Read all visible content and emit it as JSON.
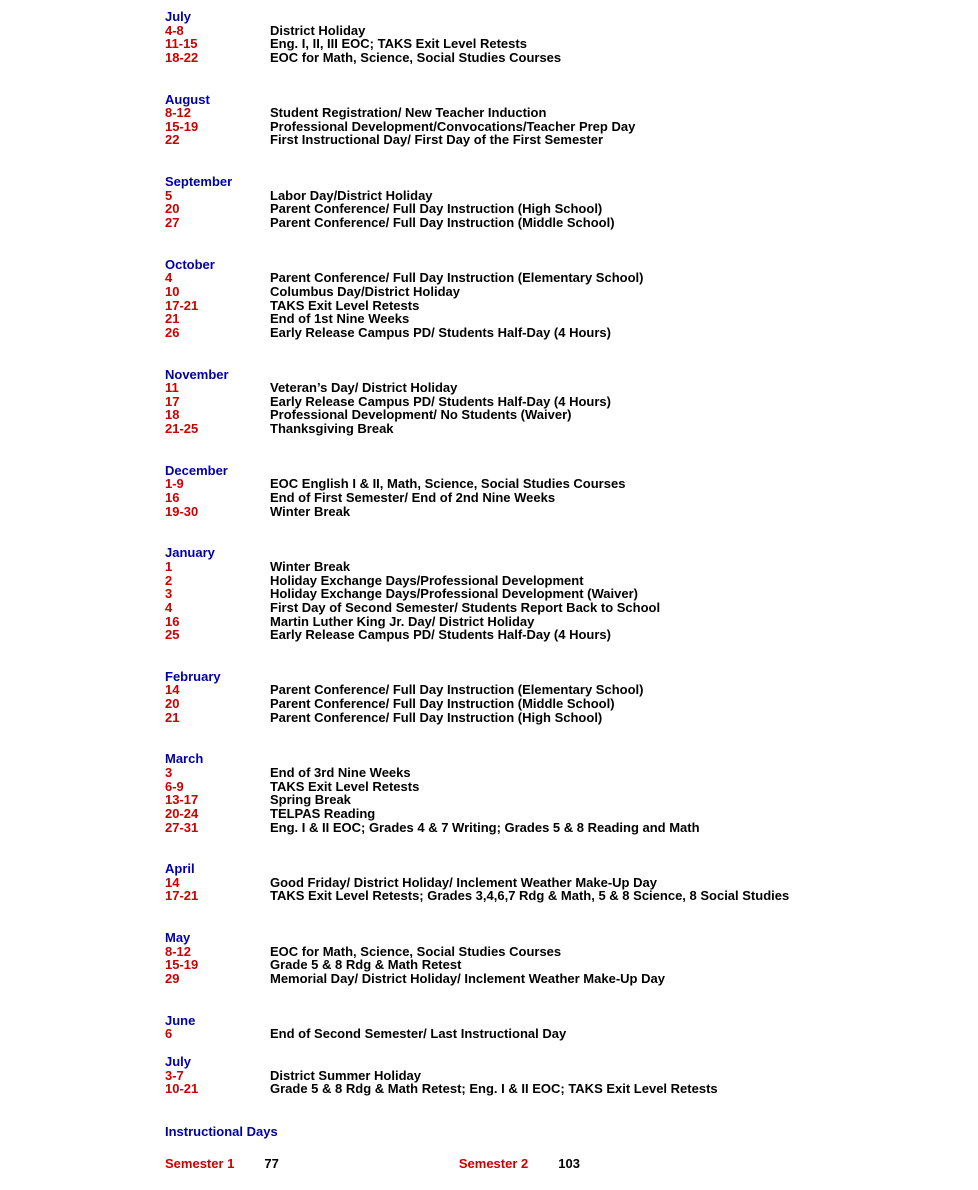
{
  "colors": {
    "month": "#0000aa",
    "date": "#cc0000",
    "desc": "#000000",
    "background": "#ffffff"
  },
  "typography": {
    "font_family": "Arial, Helvetica, sans-serif",
    "font_size_pt": 10,
    "weight": "bold"
  },
  "months": [
    {
      "name": "July",
      "entries": [
        {
          "date": "4-8",
          "desc": "District Holiday"
        },
        {
          "date": "11-15",
          "desc": "Eng. I, II, III EOC; TAKS Exit Level Retests"
        },
        {
          "date": "18-22",
          "desc": "EOC for Math, Science, Social Studies Courses"
        }
      ]
    },
    {
      "name": "August",
      "entries": [
        {
          "date": "8-12",
          "desc": "Student Registration/ New Teacher Induction"
        },
        {
          "date": "15-19",
          "desc": "Professional Development/Convocations/Teacher Prep Day"
        },
        {
          "date": "22",
          "desc": "First Instructional Day/ First Day of the First Semester"
        }
      ]
    },
    {
      "name": "September",
      "entries": [
        {
          "date": "5",
          "desc": "Labor Day/District Holiday"
        },
        {
          "date": "20",
          "desc": "Parent Conference/ Full Day Instruction (High School)"
        },
        {
          "date": "27",
          "desc": "Parent Conference/ Full Day Instruction (Middle School)"
        }
      ]
    },
    {
      "name": "October",
      "entries": [
        {
          "date": "4",
          "desc": "Parent Conference/ Full Day Instruction  (Elementary School)"
        },
        {
          "date": "10",
          "desc": "Columbus Day/District Holiday"
        },
        {
          "date": "17-21",
          "desc": "TAKS Exit Level Retests"
        },
        {
          "date": "21",
          "desc": "End of 1st Nine Weeks"
        },
        {
          "date": "26",
          "desc": "Early Release Campus PD/ Students Half-Day (4 Hours)"
        }
      ]
    },
    {
      "name": "November",
      "entries": [
        {
          "date": "11",
          "desc": "Veteran’s Day/ District Holiday"
        },
        {
          "date": "17",
          "desc": "Early Release Campus PD/ Students Half-Day (4 Hours)"
        },
        {
          "date": "18",
          "desc": "Professional Development/ No Students (Waiver)"
        },
        {
          "date": "21-25",
          "desc": "Thanksgiving Break"
        }
      ]
    },
    {
      "name": "December",
      "entries": [
        {
          "date": "1-9",
          "desc": "EOC English I & II, Math, Science, Social Studies Courses"
        },
        {
          "date": "16",
          "desc": "End of First Semester/ End of 2nd Nine Weeks"
        },
        {
          "date": "19-30",
          "desc": "Winter Break"
        }
      ]
    },
    {
      "name": "January",
      "entries": [
        {
          "date": "1",
          "desc": "Winter Break"
        },
        {
          "date": "2",
          "desc": "Holiday Exchange Days/Professional Development"
        },
        {
          "date": "3",
          "desc": "Holiday Exchange Days/Professional Development (Waiver)"
        },
        {
          "date": "4",
          "desc": "First Day of Second Semester/ Students Report Back to School"
        },
        {
          "date": "16",
          "desc": "Martin Luther King Jr. Day/ District Holiday"
        },
        {
          "date": "25",
          "desc": "Early Release Campus PD/ Students Half-Day (4 Hours)"
        }
      ]
    },
    {
      "name": "February",
      "entries": [
        {
          "date": "14",
          "desc": "Parent Conference/ Full Day Instruction (Elementary School)"
        },
        {
          "date": "20",
          "desc": "Parent Conference/ Full Day Instruction (Middle School)"
        },
        {
          "date": "21",
          "desc": "Parent Conference/ Full Day Instruction (High School)"
        }
      ]
    },
    {
      "name": "March",
      "entries": [
        {
          "date": "3",
          "desc": "End of 3rd Nine Weeks"
        },
        {
          "date": "6-9",
          "desc": "TAKS Exit Level Retests"
        },
        {
          "date": "13-17",
          "desc": "Spring Break"
        },
        {
          "date": "20-24",
          "desc": "TELPAS Reading"
        },
        {
          "date": "27-31",
          "desc": "Eng. I & II EOC; Grades 4 & 7 Writing; Grades 5 & 8 Reading and Math"
        }
      ]
    },
    {
      "name": "April",
      "entries": [
        {
          "date": "14",
          "desc": "Good Friday/ District Holiday/ Inclement Weather Make-Up Day"
        },
        {
          "date": "17-21",
          "desc": "TAKS Exit Level Retests; Grades 3,4,6,7 Rdg & Math, 5 & 8 Science, 8 Social Studies"
        }
      ]
    },
    {
      "name": "May",
      "entries": [
        {
          "date": "8-12",
          "desc": "EOC for Math, Science, Social Studies Courses"
        },
        {
          "date": "15-19",
          "desc": "Grade 5 & 8 Rdg & Math Retest"
        },
        {
          "date": "29",
          "desc": "Memorial Day/ District Holiday/ Inclement Weather Make-Up Day"
        }
      ]
    },
    {
      "name": "June",
      "entries": [
        {
          "date": "6",
          "desc": "End of Second Semester/ Last Instructional Day"
        }
      ]
    },
    {
      "name": "July",
      "entries": [
        {
          "date": "3-7",
          "desc": "District Summer Holiday"
        },
        {
          "date": "10-21",
          "desc": "Grade 5 & 8 Rdg & Math Retest; Eng. I & II EOC; TAKS Exit Level Retests"
        }
      ]
    }
  ],
  "instructional_days": {
    "title": "Instructional Days",
    "semester1_label": "Semester 1",
    "semester1_value": "77",
    "semester2_label": "Semester 2",
    "semester2_value": "103"
  }
}
